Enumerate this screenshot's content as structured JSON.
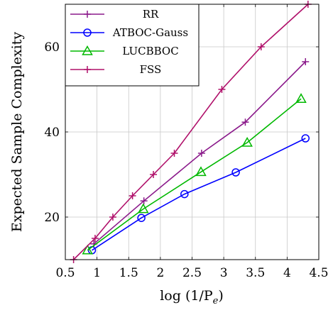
{
  "chart_data": {
    "type": "line",
    "title": "",
    "xlabel": "log (1/P",
    "xlabel_sub": "e",
    "xlabel_close": ")",
    "ylabel": "Expected Sample Complexity",
    "xlim": [
      0.5,
      4.5
    ],
    "ylim": [
      10,
      70
    ],
    "xticks": [
      0.5,
      1,
      1.5,
      2,
      2.5,
      3,
      3.5,
      4,
      4.5
    ],
    "xtick_labels": [
      "0.5",
      "1",
      "1.5",
      "2",
      "2.5",
      "3",
      "3.5",
      "4",
      "4.5"
    ],
    "yticks": [
      20,
      40,
      60
    ],
    "ytick_labels": [
      "20",
      "40",
      "60"
    ],
    "grid": true,
    "legend_position": "top-left",
    "series": [
      {
        "name": "RR",
        "color": "#8b1a8b",
        "marker": "plus",
        "x": [
          0.95,
          1.74,
          2.65,
          3.34,
          4.29
        ],
        "y": [
          13.7,
          23.8,
          35.0,
          42.3,
          56.5
        ]
      },
      {
        "name": "ATBOC-Gauss",
        "color": "#0000ff",
        "marker": "circle",
        "x": [
          0.92,
          1.7,
          2.38,
          3.19,
          4.29
        ],
        "y": [
          12.2,
          19.8,
          25.4,
          30.5,
          38.5
        ]
      },
      {
        "name": "LUCBBOC",
        "color": "#00b800",
        "marker": "triangle",
        "x": [
          0.85,
          1.73,
          2.64,
          3.37,
          4.22
        ],
        "y": [
          12.2,
          21.9,
          30.6,
          37.5,
          47.8
        ]
      },
      {
        "name": "FSS",
        "color": "#b0106a",
        "marker": "plus",
        "x": [
          0.63,
          0.97,
          1.25,
          1.56,
          1.89,
          2.22,
          2.97,
          3.59,
          4.33
        ],
        "y": [
          10.0,
          15.0,
          20.0,
          25.0,
          30.0,
          35.0,
          50.0,
          60.0,
          70.0
        ]
      }
    ]
  }
}
